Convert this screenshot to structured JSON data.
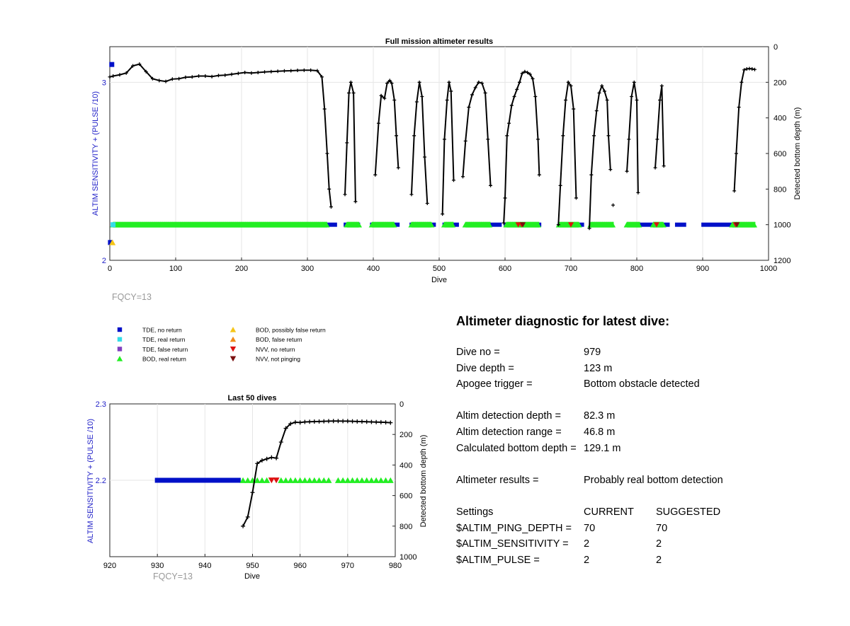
{
  "main_chart": {
    "title": "Full mission altimeter results",
    "xlabel": "Dive",
    "ylabel_left": "ALTIM SENSITIVITY + (PULSE /10)",
    "ylabel_right": "Detected bottom depth (m)",
    "x_ticks": [
      "0",
      "100",
      "200",
      "300",
      "400",
      "500",
      "600",
      "700",
      "800",
      "900",
      "1000"
    ],
    "left_ticks": [
      "3",
      "2"
    ],
    "right_ticks": [
      "0",
      "200",
      "400",
      "600",
      "800",
      "1000",
      "1200"
    ],
    "fqcy_text": "FQCY=13"
  },
  "zoom_chart": {
    "title": "Last 50 dives",
    "xlabel": "Dive",
    "ylabel_left": "ALTIM SENSITIVITY + (PULSE /10)",
    "ylabel_right": "Detected bottom depth (m)",
    "x_ticks": [
      "920",
      "930",
      "940",
      "950",
      "960",
      "970",
      "980"
    ],
    "left_ticks": [
      "2.3",
      "2.2"
    ],
    "right_ticks": [
      "0",
      "200",
      "400",
      "600",
      "800",
      "1000"
    ],
    "fqcy_text": "FQCY=13"
  },
  "legend": [
    {
      "label": "TDE, no return",
      "color": "#0010c8",
      "marker": "square"
    },
    {
      "label": "TDE, real return",
      "color": "#33dde8",
      "marker": "square"
    },
    {
      "label": "TDE, false return",
      "color": "#8040c0",
      "marker": "square"
    },
    {
      "label": "BOD, real return",
      "color": "#22ee22",
      "marker": "triangle-up"
    },
    {
      "label": "BOD, possibly false return",
      "color": "#f5c518",
      "marker": "triangle-up"
    },
    {
      "label": "BOD, false return",
      "color": "#f08c1a",
      "marker": "triangle-up"
    },
    {
      "label": "NVV, no return",
      "color": "#dd1111",
      "marker": "triangle-down"
    },
    {
      "label": "NVV, not pinging",
      "color": "#7a1010",
      "marker": "triangle-down"
    }
  ],
  "diagnostic": {
    "title": "Altimeter diagnostic for latest dive:",
    "dive_no_label": "Dive no =",
    "dive_no": "979",
    "dive_depth_label": "Dive depth =",
    "dive_depth": "123 m",
    "apogee_label": "Apogee trigger =",
    "apogee": "Bottom obstacle detected",
    "det_depth_label": "Altim detection depth =",
    "det_depth": "82.3 m",
    "det_range_label": "Altim detection range =",
    "det_range": "46.8 m",
    "calc_depth_label": "Calculated bottom depth =",
    "calc_depth": "129.1 m",
    "results_label": "Altimeter results =",
    "results": "Probably real bottom detection",
    "settings_label": "Settings",
    "current_label": "CURRENT",
    "suggested_label": "SUGGESTED",
    "settings": [
      {
        "name": "$ALTIM_PING_DEPTH =",
        "current": "70",
        "suggested": "70"
      },
      {
        "name": "$ALTIM_SENSITIVITY =",
        "current": "2",
        "suggested": "2"
      },
      {
        "name": "$ALTIM_PULSE =",
        "current": "2",
        "suggested": "2"
      }
    ]
  },
  "chart_data": [
    {
      "type": "scatter",
      "title": "Full mission altimeter results",
      "xlabel": "Dive",
      "ylabel": "ALTIM SENSITIVITY + (PULSE /10)",
      "ylabel_right": "Detected bottom depth (m)",
      "xlim": [
        0,
        1000
      ],
      "ylim_left": [
        2,
        3.2
      ],
      "ylim_right": [
        0,
        1200
      ],
      "right_axis_reversed": true,
      "grid": true,
      "depth_series": {
        "name": "Detected bottom depth",
        "segments": [
          {
            "x": [
              0,
              5,
              15,
              25,
              35,
              45,
              55,
              65,
              75,
              85,
              95,
              105,
              115,
              125,
              135,
              145,
              155,
              165,
              175,
              185,
              195,
              205,
              215,
              225,
              235,
              245,
              255,
              265,
              275,
              285,
              295,
              305,
              315,
              322,
              326,
              330,
              333,
              336
            ],
            "y": [
              170,
              165,
              158,
              148,
              108,
              98,
              140,
              180,
              190,
              195,
              182,
              180,
              172,
              170,
              165,
              165,
              168,
              162,
              160,
              155,
              150,
              145,
              148,
              145,
              142,
              140,
              138,
              136,
              135,
              133,
              132,
              132,
              135,
              170,
              350,
              600,
              800,
              900
            ]
          },
          {
            "x": [
              357,
              360,
              363,
              366,
              370,
              373
            ],
            "y": [
              830,
              540,
              260,
              200,
              260,
              870
            ]
          },
          {
            "x": [
              403,
              408,
              412,
              417,
              421,
              425,
              428,
              432,
              435,
              438
            ],
            "y": [
              720,
              430,
              275,
              290,
              205,
              190,
              205,
              300,
              500,
              680
            ]
          },
          {
            "x": [
              458,
              462,
              466,
              470,
              474,
              478,
              482
            ],
            "y": [
              830,
              500,
              310,
              200,
              280,
              620,
              880
            ]
          },
          {
            "x": [
              505,
              508,
              512,
              515,
              518,
              522
            ],
            "y": [
              940,
              520,
              300,
              200,
              250,
              750
            ]
          },
          {
            "x": [
              536,
              540,
              545,
              550,
              555,
              560,
              565,
              570,
              574,
              578
            ],
            "y": [
              730,
              530,
              340,
              270,
              230,
              200,
              205,
              260,
              520,
              780
            ]
          },
          {
            "x": [
              598,
              600,
              603,
              606,
              610,
              614,
              618,
              622,
              626,
              630,
              634,
              638,
              642,
              646,
              650,
              652
            ],
            "y": [
              990,
              850,
              500,
              430,
              330,
              280,
              240,
              200,
              150,
              140,
              145,
              155,
              180,
              280,
              520,
              720
            ]
          },
          {
            "x": [
              681,
              684,
              688,
              692,
              696,
              700,
              704,
              708
            ],
            "y": [
              1000,
              780,
              500,
              300,
              200,
              220,
              350,
              850
            ]
          },
          {
            "x": [
              728,
              731,
              735,
              739,
              743,
              747,
              751,
              755,
              757,
              760
            ],
            "y": [
              1020,
              720,
              500,
              360,
              260,
              220,
              250,
              300,
              500,
              690
            ]
          },
          {
            "x": [
              764
            ],
            "y": [
              890
            ]
          },
          {
            "x": [
              785,
              788,
              792,
              796,
              800,
              802
            ],
            "y": [
              700,
              520,
              280,
              200,
              300,
              820
            ]
          },
          {
            "x": [
              828,
              831,
              835,
              838,
              841
            ],
            "y": [
              680,
              520,
              300,
              220,
              670
            ]
          },
          {
            "x": [
              948,
              951,
              955,
              959,
              963,
              967,
              971,
              975,
              979
            ],
            "y": [
              810,
              600,
              340,
              200,
              130,
              125,
              123,
              125,
              128
            ]
          }
        ]
      },
      "marker_rows": [
        {
          "name": "TDE, no return",
          "y": 2.2,
          "x_ranges": [
            [
              330,
              345
            ],
            [
              355,
              380
            ],
            [
              395,
              440
            ],
            [
              455,
              495
            ],
            [
              505,
              530
            ],
            [
              540,
              595
            ],
            [
              598,
              655
            ],
            [
              680,
              720
            ],
            [
              728,
              765
            ],
            [
              785,
              830
            ],
            [
              840,
              850
            ],
            [
              858,
              875
            ],
            [
              898,
              975
            ]
          ]
        },
        {
          "name": "BOD, real return",
          "y": 2.2,
          "x_ranges": [
            [
              5,
              330
            ],
            [
              360,
              378
            ],
            [
              398,
              432
            ],
            [
              458,
              488
            ],
            [
              508,
              522
            ],
            [
              540,
              578
            ],
            [
              602,
              652
            ],
            [
              682,
              712
            ],
            [
              730,
              765
            ],
            [
              785,
              805
            ],
            [
              825,
              840
            ],
            [
              945,
              980
            ]
          ]
        },
        {
          "name": "TDE, real return",
          "y": 2.2,
          "x": [
            5
          ]
        },
        {
          "name": "NVV, no return",
          "y": 2.2,
          "x": [
            620,
            625,
            700,
            830,
            950
          ]
        },
        {
          "name": "NVV, not pinging",
          "y": 2.2,
          "x": [
            627,
            952
          ]
        },
        {
          "name": "TDE, no return",
          "y": 3.1,
          "x": [
            3
          ]
        },
        {
          "name": "TDE, no return",
          "y": 2.1,
          "x": [
            1
          ]
        },
        {
          "name": "BOD, possibly false return",
          "y": 2.1,
          "x": [
            4
          ]
        }
      ]
    },
    {
      "type": "scatter",
      "title": "Last 50 dives",
      "xlabel": "Dive",
      "ylabel": "ALTIM SENSITIVITY + (PULSE /10)",
      "ylabel_right": "Detected bottom depth (m)",
      "xlim": [
        920,
        980
      ],
      "ylim_left": [
        2.1,
        2.3
      ],
      "ylim_right": [
        0,
        1000
      ],
      "right_axis_reversed": true,
      "grid": true,
      "depth_series": {
        "name": "Detected bottom depth",
        "x": [
          948,
          949,
          950,
          951,
          952,
          953,
          954,
          955,
          956,
          957,
          958,
          959,
          960,
          961,
          962,
          963,
          964,
          965,
          966,
          967,
          968,
          969,
          970,
          971,
          972,
          973,
          974,
          975,
          976,
          977,
          978,
          979
        ],
        "y": [
          800,
          740,
          580,
          390,
          370,
          360,
          350,
          355,
          250,
          160,
          130,
          120,
          122,
          118,
          117,
          116,
          115,
          114,
          113,
          112,
          112,
          113,
          113,
          114,
          115,
          116,
          117,
          118,
          119,
          120,
          121,
          123
        ]
      },
      "markers": {
        "TDE, no return": {
          "y": 2.2,
          "x": [
            930,
            931,
            932,
            933,
            934,
            935,
            936,
            937,
            938,
            939,
            940,
            941,
            942,
            943,
            944,
            945,
            946,
            947
          ]
        },
        "BOD, real return": {
          "y": 2.2,
          "x": [
            948,
            949,
            950,
            951,
            952,
            953,
            956,
            957,
            958,
            959,
            960,
            961,
            962,
            963,
            964,
            965,
            966,
            968,
            969,
            970,
            971,
            972,
            973,
            974,
            975,
            976,
            977,
            978,
            979
          ]
        },
        "NVV, no return": {
          "y": 2.2,
          "x": [
            954,
            955
          ]
        }
      }
    }
  ]
}
